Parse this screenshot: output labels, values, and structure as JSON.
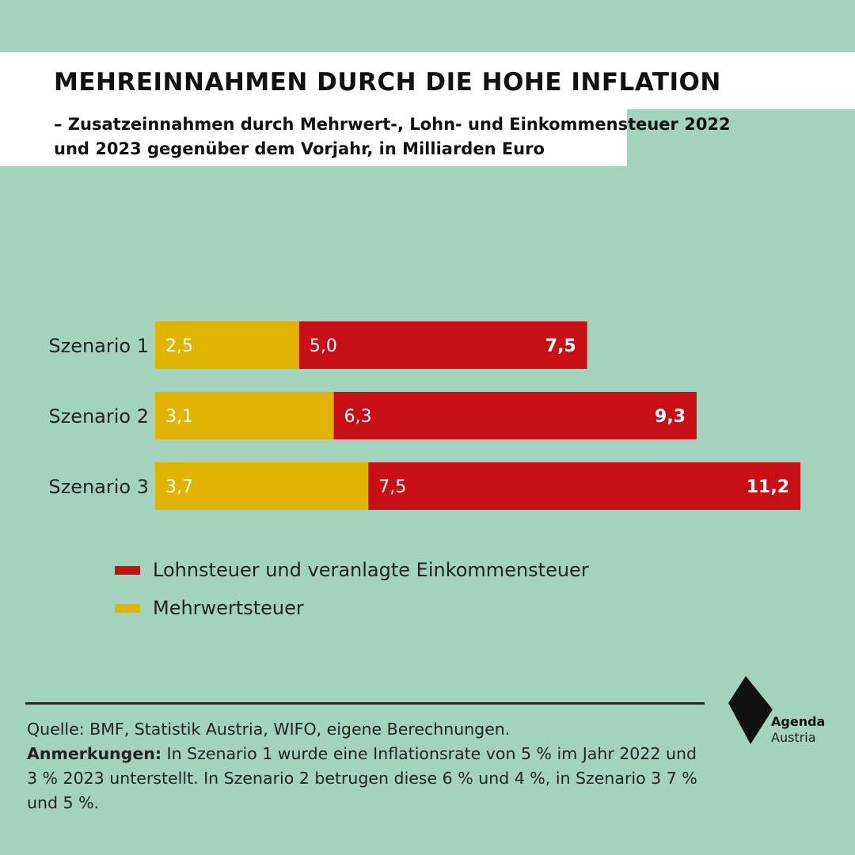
{
  "header": {
    "title": "MEHREINNAHMEN DURCH DIE HOHE INFLATION",
    "subtitle": "– Zusatzeinnahmen durch Mehrwert-, Lohn- und Einkommensteuer 2022 und 2023 gegenüber dem Vorjahr, in Milliarden Euro"
  },
  "colors": {
    "background": "#a3d3bc",
    "mehrwertsteuer": "#e0b400",
    "lohnsteuer": "#c70f15"
  },
  "chart_data": {
    "type": "bar",
    "orientation": "horizontal",
    "stacked": true,
    "categories": [
      "Szenario 1",
      "Szenario 2",
      "Szenario 3"
    ],
    "series": [
      {
        "name": "Mehrwertsteuer",
        "values": [
          2.5,
          3.1,
          3.7
        ],
        "labels": [
          "2,5",
          "3,1",
          "3,7"
        ]
      },
      {
        "name": "Lohnsteuer und veranlagte Einkommensteuer",
        "values": [
          5.0,
          6.3,
          7.5
        ],
        "labels": [
          "5,0",
          "6,3",
          "7,5"
        ]
      }
    ],
    "totals": [
      7.5,
      9.3,
      11.2
    ],
    "total_labels": [
      "7,5",
      "9,3",
      "11,2"
    ],
    "xlim": [
      0,
      11.2
    ],
    "grid": false,
    "legend_position": "bottom-left"
  },
  "legend": [
    {
      "label": "Lohnsteuer und veranlagte Einkommensteuer",
      "color": "#c70f15"
    },
    {
      "label": "Mehrwertsteuer",
      "color": "#e0b400"
    }
  ],
  "footer": {
    "source": "Quelle: BMF, Statistik Austria, WIFO, eigene Berechnungen.",
    "notes_label": "Anmerkungen:",
    "notes_text": " In Szenario 1 wurde eine Inflationsrate von 5 % im Jahr 2022 und 3 % 2023 unterstellt. In Szenario 2 betrugen diese 6 % und 4 %, in Szenario 3 7 % und 5 %."
  },
  "logo": {
    "line1": "Agenda",
    "line2": "Austria"
  }
}
